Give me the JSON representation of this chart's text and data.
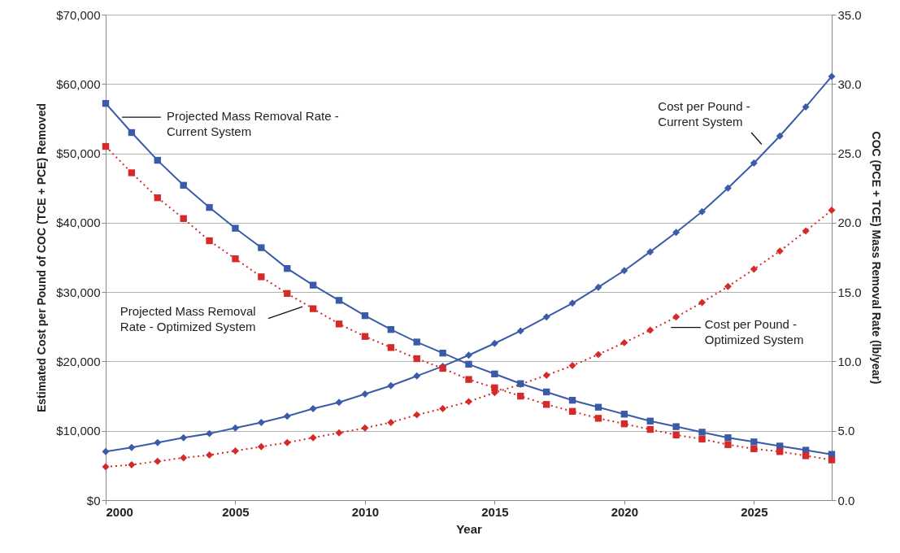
{
  "chart_data": {
    "type": "line",
    "xlabel": "Year",
    "ylabel": "Estimated Cost per Pound of COC (TCE + PCE) Removed",
    "y2label": "COC (PCE + TCE) Mass Removal Rate (lb/year)",
    "x": [
      2000,
      2001,
      2002,
      2003,
      2004,
      2005,
      2006,
      2007,
      2008,
      2009,
      2010,
      2011,
      2012,
      2013,
      2014,
      2015,
      2016,
      2017,
      2018,
      2019,
      2020,
      2021,
      2022,
      2023,
      2024,
      2025,
      2026,
      2027,
      2028
    ],
    "xlim": [
      2000,
      2028
    ],
    "xticks": [
      2000,
      2005,
      2010,
      2015,
      2020,
      2025
    ],
    "ylim": [
      0,
      70000
    ],
    "yticks": [
      {
        "value": 0,
        "label": "$0"
      },
      {
        "value": 10000,
        "label": "$10,000"
      },
      {
        "value": 20000,
        "label": "$20,000"
      },
      {
        "value": 30000,
        "label": "$30,000"
      },
      {
        "value": 40000,
        "label": "$40,000"
      },
      {
        "value": 50000,
        "label": "$50,000"
      },
      {
        "value": 60000,
        "label": "$60,000"
      },
      {
        "value": 70000,
        "label": "$70,000"
      }
    ],
    "y2lim": [
      0,
      35
    ],
    "y2ticks": [
      {
        "value": 0,
        "label": "0.0"
      },
      {
        "value": 5,
        "label": "5.0"
      },
      {
        "value": 10,
        "label": "10.0"
      },
      {
        "value": 15,
        "label": "15.0"
      },
      {
        "value": 20,
        "label": "20.0"
      },
      {
        "value": 25,
        "label": "25.0"
      },
      {
        "value": 30,
        "label": "30.0"
      },
      {
        "value": 35,
        "label": "35.0"
      }
    ],
    "grid": "y",
    "series": [
      {
        "name": "Projected Mass Removal Rate -\nCurrent System",
        "color": "#3a5ba8",
        "axis": "y2",
        "marker": "square",
        "line_style": "solid",
        "values": [
          28.6,
          26.5,
          24.5,
          22.7,
          21.1,
          19.6,
          18.2,
          16.7,
          15.5,
          14.4,
          13.3,
          12.3,
          11.4,
          10.6,
          9.8,
          9.1,
          8.4,
          7.8,
          7.2,
          6.7,
          6.2,
          5.7,
          5.3,
          4.9,
          4.5,
          4.2,
          3.9,
          3.6,
          3.3
        ]
      },
      {
        "name": "Projected Mass Removal\nRate - Optimized System",
        "color": "#d42a2a",
        "axis": "y2",
        "marker": "square",
        "line_style": "dotted",
        "values": [
          25.5,
          23.6,
          21.8,
          20.3,
          18.7,
          17.4,
          16.1,
          14.9,
          13.8,
          12.7,
          11.8,
          11.0,
          10.2,
          9.5,
          8.7,
          8.1,
          7.5,
          6.9,
          6.4,
          5.9,
          5.5,
          5.1,
          4.7,
          4.4,
          4.0,
          3.7,
          3.5,
          3.2,
          2.9
        ]
      },
      {
        "name": "Cost per Pound -\nCurrent System",
        "color": "#3a5ba8",
        "marker": "diamond",
        "line_style": "solid",
        "values": [
          7000,
          7600,
          8300,
          9000,
          9600,
          10400,
          11200,
          12100,
          13200,
          14100,
          15300,
          16500,
          17900,
          19300,
          20900,
          22600,
          24400,
          26400,
          28400,
          30700,
          33100,
          35800,
          38600,
          41600,
          45000,
          48600,
          52500,
          56700,
          61100
        ]
      },
      {
        "name": "Cost per Pound -\nOptimized System",
        "color": "#d42a2a",
        "marker": "diamond",
        "line_style": "dotted",
        "values": [
          4800,
          5100,
          5600,
          6100,
          6500,
          7100,
          7700,
          8300,
          9000,
          9700,
          10400,
          11200,
          12300,
          13200,
          14200,
          15500,
          16700,
          18000,
          19400,
          21000,
          22700,
          24500,
          26400,
          28500,
          30800,
          33300,
          35900,
          38800,
          41800
        ]
      }
    ]
  }
}
